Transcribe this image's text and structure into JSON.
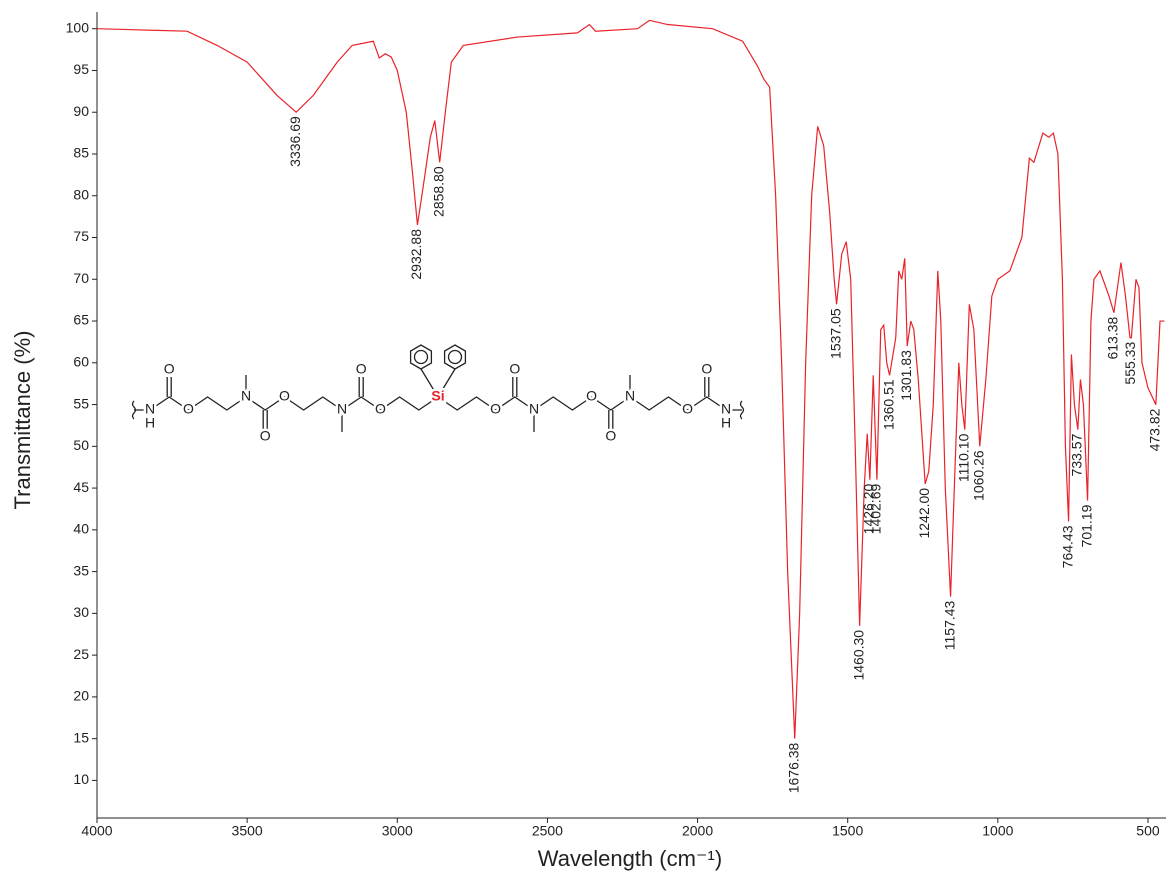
{
  "chart_data": {
    "type": "line",
    "x_label": "Wavelength (cm⁻¹)",
    "y_label": "Transmittance (%)",
    "color": "#e8232a",
    "xlim": [
      4000,
      440
    ],
    "ylim": [
      5.5,
      102
    ],
    "xticks": [
      4000,
      3500,
      3000,
      2500,
      2000,
      1500,
      1000,
      500
    ],
    "yticks": [
      10,
      15,
      20,
      25,
      30,
      35,
      40,
      45,
      50,
      55,
      60,
      65,
      70,
      75,
      80,
      85,
      90,
      95,
      100
    ],
    "grid": false,
    "x": [
      4000,
      3800,
      3700,
      3600,
      3500,
      3450,
      3400,
      3336.69,
      3280,
      3200,
      3150,
      3080,
      3060,
      3040,
      3020,
      3000,
      2970,
      2950,
      2932.88,
      2910,
      2890,
      2875,
      2858.8,
      2840,
      2820,
      2780,
      2600,
      2400,
      2360,
      2340,
      2200,
      2160,
      2100,
      1950,
      1850,
      1800,
      1780,
      1760,
      1740,
      1720,
      1700,
      1676.38,
      1660,
      1640,
      1620,
      1600,
      1580,
      1560,
      1545,
      1537.05,
      1520,
      1505,
      1490,
      1475,
      1460.3,
      1445,
      1435,
      1426.2,
      1415,
      1402.69,
      1390,
      1380,
      1370,
      1360.51,
      1340,
      1330,
      1320,
      1310,
      1301.83,
      1290,
      1280,
      1265,
      1242,
      1230,
      1215,
      1200,
      1190,
      1175,
      1157.43,
      1145,
      1130,
      1120,
      1110.1,
      1095,
      1080,
      1070,
      1060.26,
      1040,
      1020,
      1000,
      960,
      920,
      895,
      880,
      850,
      830,
      815,
      800,
      785,
      775,
      764.43,
      755,
      745,
      733.57,
      725,
      715,
      701.19,
      690,
      680,
      660,
      630,
      613.38,
      590,
      575,
      560,
      555.33,
      540,
      530,
      520,
      500,
      473.82,
      460,
      445
    ],
    "values": [
      100,
      99.8,
      99.7,
      98,
      96,
      94,
      92,
      90,
      92,
      96,
      98,
      98.5,
      96.5,
      97,
      96.6,
      95,
      90,
      83,
      76.5,
      82,
      87,
      89,
      84,
      90,
      96,
      98,
      99,
      99.5,
      100.5,
      99.7,
      100,
      101,
      100.5,
      100,
      98.5,
      95.5,
      94,
      93,
      80,
      60,
      35,
      15,
      30,
      60,
      80,
      88.3,
      86,
      78,
      70,
      67,
      73,
      74.5,
      70,
      50,
      28.5,
      45,
      51.5,
      46,
      58.5,
      46,
      64,
      64.5,
      60,
      58.5,
      63,
      71,
      70,
      72.5,
      62,
      65,
      64,
      58,
      45.5,
      47,
      55,
      71,
      65,
      45,
      32,
      45,
      60,
      55,
      52,
      67,
      64,
      57,
      50,
      58,
      68,
      70,
      71,
      75,
      84.5,
      84,
      87.5,
      87,
      87.5,
      85,
      70,
      50,
      41,
      61,
      55,
      52,
      58,
      55,
      43.5,
      65,
      70,
      71,
      68,
      66,
      72,
      68,
      63,
      63,
      70,
      69,
      60,
      57,
      55,
      65,
      65
    ],
    "peaks": [
      {
        "x": {
          "value": 3336.69,
          "label": "3336.69"
        },
        "y": 90
      },
      {
        "x": {
          "value": 2932.88,
          "label": "2932.88"
        },
        "y": 76.5
      },
      {
        "x": {
          "value": 2858.8,
          "label": "2858.80"
        },
        "y": 84
      },
      {
        "x": {
          "value": 1676.38,
          "label": "1676.38"
        },
        "y": 15
      },
      {
        "x": {
          "value": 1537.05,
          "label": "1537.05"
        },
        "y": 67
      },
      {
        "x": {
          "value": 1460.3,
          "label": "1460.30"
        },
        "y": 28.5
      },
      {
        "x": {
          "value": 1426.2,
          "label": "1426.20"
        },
        "y": 46
      },
      {
        "x": {
          "value": 1402.69,
          "label": "1402.69"
        },
        "y": 46
      },
      {
        "x": {
          "value": 1360.51,
          "label": "1360.51"
        },
        "y": 58.5
      },
      {
        "x": {
          "value": 1301.83,
          "label": "1301.83"
        },
        "y": 62
      },
      {
        "x": {
          "value": 1242,
          "label": "1242.00"
        },
        "y": 45.5
      },
      {
        "x": {
          "value": 1157.43,
          "label": "1157.43"
        },
        "y": 32
      },
      {
        "x": {
          "value": 1110.1,
          "label": "1110.10"
        },
        "y": 52
      },
      {
        "x": {
          "value": 1060.26,
          "label": "1060.26"
        },
        "y": 50
      },
      {
        "x": {
          "value": 764.43,
          "label": "764.43"
        },
        "y": 41
      },
      {
        "x": {
          "value": 733.57,
          "label": "733.57"
        },
        "y": 52
      },
      {
        "x": {
          "value": 701.19,
          "label": "701.19"
        },
        "y": 43.5
      },
      {
        "x": {
          "value": 613.38,
          "label": "613.38"
        },
        "y": 66
      },
      {
        "x": {
          "value": 555.33,
          "label": "555.33"
        },
        "y": 63
      },
      {
        "x": {
          "value": 473.82,
          "label": "473.82"
        },
        "y": 55
      }
    ],
    "structure_labels": [
      "N",
      "H",
      "O",
      "O",
      "N",
      "O",
      "O",
      "N",
      "O",
      "O",
      "Si",
      "O",
      "O",
      "N",
      "O",
      "O",
      "N",
      "O",
      "O",
      "N",
      "H"
    ]
  }
}
